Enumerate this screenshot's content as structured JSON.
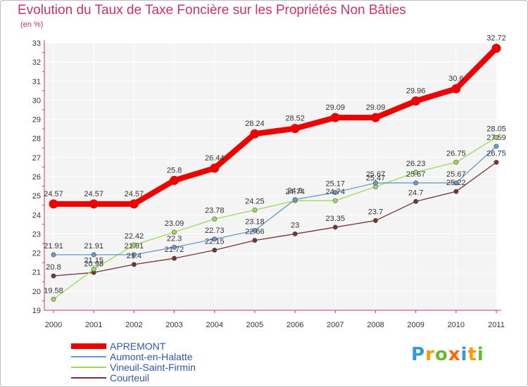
{
  "chart_data": {
    "type": "line",
    "title": "Evolution du Taux de Taxe Foncière sur les Propriétés Non Bâties",
    "ylabel": "(en %)",
    "xlabel": "",
    "categories": [
      "2000",
      "2001",
      "2002",
      "2003",
      "2004",
      "2005",
      "2006",
      "2007",
      "2008",
      "2009",
      "2010",
      "2011"
    ],
    "y_ticks": [
      "19",
      "20",
      "21",
      "22",
      "23",
      "24",
      "25",
      "26",
      "27",
      "28",
      "29",
      "30",
      "31",
      "32",
      "33"
    ],
    "ylim": [
      19,
      33
    ],
    "grid": true,
    "series": [
      {
        "name": "APREMONT",
        "color": "#ee0000",
        "values": [
          24.57,
          24.57,
          24.57,
          25.8,
          26.44,
          28.24,
          28.52,
          29.09,
          29.09,
          29.96,
          30.6,
          32.72
        ],
        "labels": [
          "24.57",
          "24.57",
          "24.57",
          "25.8",
          "26.44",
          "28.24",
          "28.52",
          "29.09",
          "29.09",
          "29.96",
          "30.6",
          "32.72"
        ]
      },
      {
        "name": "Aumont-en-Halatte",
        "color": "#6699cc",
        "values": [
          21.91,
          21.91,
          21.91,
          22.3,
          22.73,
          23.18,
          24.8,
          25.17,
          25.67,
          25.67,
          25.67,
          27.59
        ],
        "labels": [
          "21.91",
          "21.91",
          "21.91",
          "22.3",
          "22.73",
          "23.18",
          "24.8",
          "25.17",
          "25.67",
          "25.67",
          "25.67",
          "27.59"
        ]
      },
      {
        "name": "Vineuil-Saint-Firmin",
        "color": "#99dd55",
        "values": [
          19.58,
          21.15,
          22.42,
          23.09,
          23.78,
          24.25,
          24.74,
          24.74,
          25.47,
          26.23,
          26.75,
          28.05
        ],
        "labels": [
          "19.58",
          "21.15",
          "22.42",
          "23.09",
          "23.78",
          "24.25",
          "24.74",
          "24.74",
          "25.47",
          "26.23",
          "26.75",
          "28.05"
        ]
      },
      {
        "name": "Courteuil",
        "color": "#773333",
        "values": [
          20.8,
          20.98,
          21.4,
          21.72,
          22.15,
          22.66,
          23,
          23.35,
          23.7,
          24.7,
          25.22,
          26.75
        ],
        "labels": [
          "20.8",
          "20.98",
          "21.4",
          "21.72",
          "22.15",
          "22.66",
          "23",
          "23.35",
          "23.7",
          "24.7",
          "25.22",
          "26.75"
        ]
      }
    ],
    "legend_position": "bottom-left"
  },
  "logo": {
    "letters": [
      "P",
      "r",
      "o",
      "x",
      "i",
      "t",
      "i"
    ],
    "colors": [
      "#3399dd",
      "#ff9900",
      "#66bb33",
      "#ff6600",
      "#3399dd",
      "#ff9900",
      "#66bb33"
    ]
  }
}
